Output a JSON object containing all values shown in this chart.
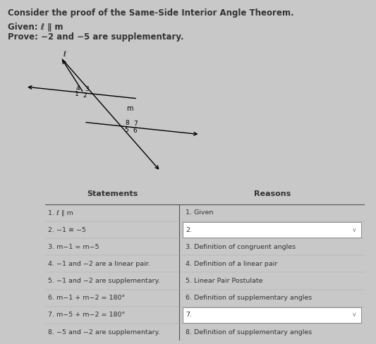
{
  "title": "Consider the proof of the Same-Side Interior Angle Theorem.",
  "given": "Given: ℓ ∥ m",
  "prove": "Prove: −2 and −5 are supplementary.",
  "bg_color": "#c8c8c8",
  "statements": [
    "1. ℓ ∥ m",
    "2. −1 ≅ −5",
    "3. m−1 = m−5",
    "4. −1 and −2 are a linear pair.",
    "5. −1 and −2 are supplementary.",
    "6. m−1 + m−2 = 180°",
    "7. m−5 + m−2 = 180°",
    "8. −5 and −2 are supplementary."
  ],
  "reasons": [
    "1. Given",
    "2.",
    "3. Definition of congruent angles",
    "4. Definition of a linear pair",
    "5. Linear Pair Postulate",
    "6. Definition of supplementary angles",
    "7.",
    "8. Definition of supplementary angles"
  ],
  "dropdown_rows": [
    1,
    6
  ],
  "col_split": 0.42
}
